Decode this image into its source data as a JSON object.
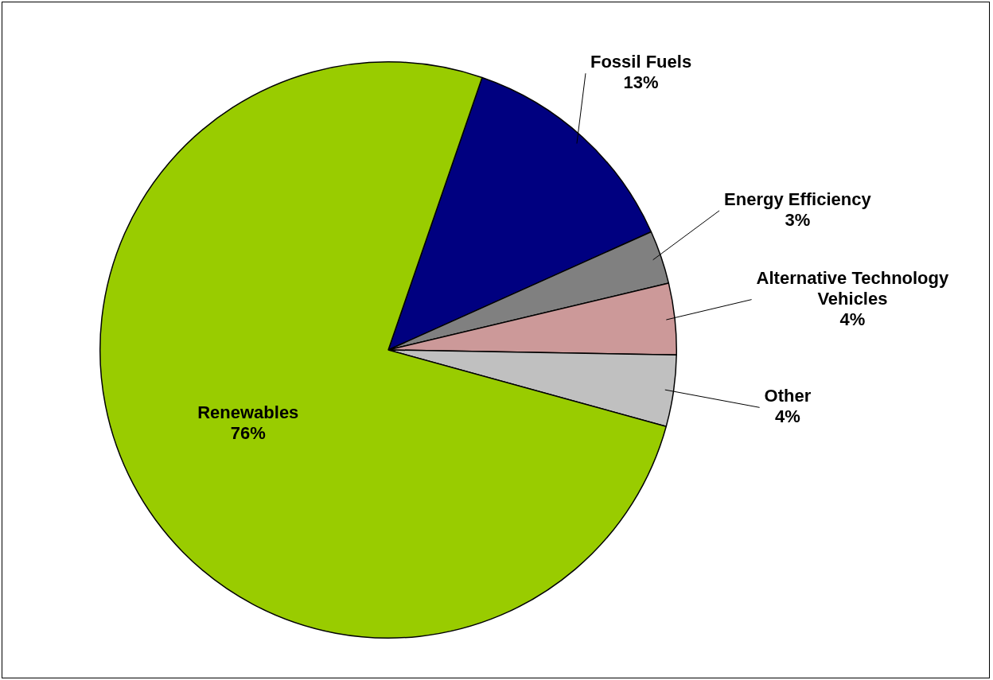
{
  "chart_data": {
    "type": "pie",
    "categories": [
      "Fossil Fuels",
      "Energy Efficiency",
      "Alternative Technology Vehicles",
      "Other",
      "Renewables"
    ],
    "values": [
      13,
      3,
      4,
      4,
      76
    ],
    "value_labels": [
      "13%",
      "3%",
      "4%",
      "4%",
      "76%"
    ],
    "colors": [
      "#000080",
      "#808080",
      "#cc9999",
      "#c0c0c0",
      "#99cc00"
    ],
    "legend": false
  }
}
